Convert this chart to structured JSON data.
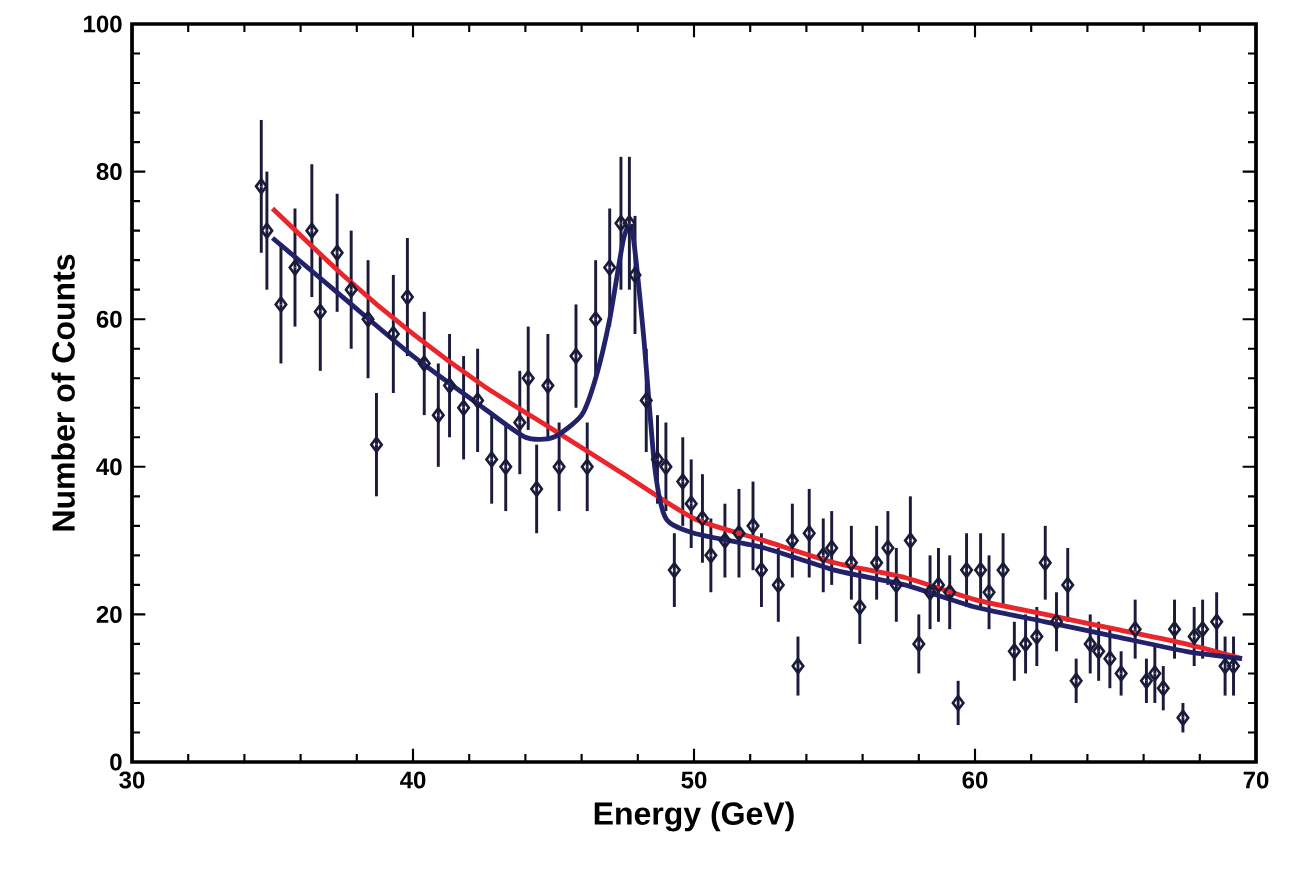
{
  "chart_data": {
    "type": "scatter",
    "xlabel": "Energy (GeV)",
    "ylabel": "Number of Counts",
    "xlim": [
      30,
      70
    ],
    "ylim": [
      0,
      100
    ],
    "xticks": [
      30,
      40,
      50,
      60,
      70
    ],
    "yticks": [
      0,
      20,
      40,
      60,
      80,
      100
    ],
    "series": [
      {
        "color": "#1a1a3a",
        "marker": "diamond",
        "x": [
          34.6,
          34.8,
          35.3,
          35.8,
          36.4,
          36.7,
          37.3,
          37.8,
          38.4,
          38.7,
          39.3,
          39.8,
          40.4,
          40.9,
          41.3,
          41.8,
          42.3,
          42.8,
          43.3,
          43.8,
          44.1,
          44.4,
          44.8,
          45.2,
          45.8,
          46.2,
          46.5,
          47.0,
          47.4,
          47.7,
          47.9,
          48.3,
          48.7,
          49.0,
          49.3,
          49.6,
          49.9,
          50.3,
          50.6,
          51.1,
          51.6,
          52.1,
          52.4,
          53.0,
          53.5,
          53.7,
          54.1,
          54.6,
          54.9,
          55.6,
          55.9,
          56.5,
          56.9,
          57.2,
          57.7,
          58.0,
          58.4,
          58.7,
          59.1,
          59.4,
          59.7,
          60.2,
          60.5,
          61.0,
          61.4,
          61.8,
          62.2,
          62.5,
          62.9,
          63.3,
          63.6,
          64.1,
          64.4,
          64.8,
          65.2,
          65.7,
          66.1,
          66.4,
          66.7,
          67.1,
          67.4,
          67.8,
          68.1,
          68.6,
          68.9,
          69.2
        ],
        "values": [
          78,
          72,
          62,
          67,
          72,
          61,
          69,
          64,
          60,
          43,
          58,
          63,
          54,
          47,
          51,
          48,
          49,
          41,
          40,
          46,
          52,
          37,
          51,
          40,
          55,
          40,
          60,
          67,
          73,
          73,
          66,
          49,
          41,
          40,
          26,
          38,
          35,
          33,
          28,
          30,
          31,
          32,
          26,
          24,
          30,
          13,
          31,
          28,
          29,
          27,
          21,
          27,
          29,
          24,
          30,
          16,
          23,
          24,
          23,
          8,
          26,
          26,
          23,
          26,
          15,
          16,
          17,
          27,
          19,
          24,
          11,
          16,
          15,
          14,
          12,
          18,
          11,
          12,
          10,
          18,
          6,
          17,
          18,
          19,
          13,
          13
        ],
        "errors": [
          9,
          8,
          8,
          8,
          9,
          8,
          8,
          8,
          8,
          7,
          8,
          8,
          7,
          7,
          7,
          7,
          7,
          6,
          6,
          7,
          7,
          6,
          7,
          6,
          7,
          6,
          8,
          8,
          9,
          9,
          8,
          7,
          6,
          6,
          5,
          6,
          6,
          6,
          5,
          5,
          6,
          6,
          5,
          5,
          5,
          4,
          6,
          5,
          5,
          5,
          5,
          5,
          5,
          5,
          6,
          4,
          5,
          5,
          5,
          3,
          5,
          5,
          5,
          5,
          4,
          4,
          4,
          5,
          4,
          5,
          3,
          4,
          4,
          4,
          3,
          4,
          3,
          4,
          3,
          4,
          2,
          4,
          4,
          4,
          4,
          4
        ]
      },
      {
        "type": "line",
        "color": "#e8262b",
        "x": [
          35,
          37.5,
          40,
          42.5,
          45,
          47.5,
          50,
          52.5,
          55,
          57.5,
          60,
          62.5,
          65,
          67.5,
          69.5
        ],
        "values": [
          75,
          66,
          58,
          51,
          45,
          39,
          33,
          30,
          27,
          25,
          22,
          20,
          18,
          16,
          14
        ]
      },
      {
        "type": "line",
        "color": "#22226a",
        "x": [
          35,
          37.5,
          40,
          42.5,
          44,
          45,
          46,
          46.5,
          47,
          47.5,
          47.8,
          48.2,
          48.6,
          49,
          50,
          52.5,
          55,
          57.5,
          60,
          62.5,
          65,
          67.5,
          69.5
        ],
        "values": [
          71,
          63,
          55,
          48,
          44,
          44,
          47,
          52,
          60,
          71,
          72,
          58,
          40,
          33,
          31,
          29,
          26,
          24,
          21,
          19,
          17,
          15,
          14
        ]
      }
    ]
  }
}
